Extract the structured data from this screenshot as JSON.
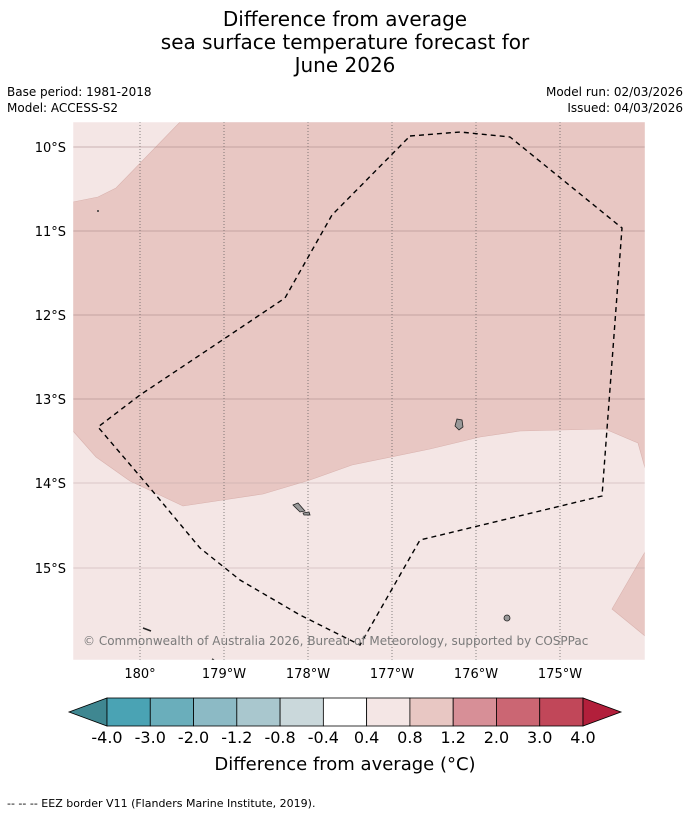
{
  "title": {
    "line1": "Difference from average",
    "line2": "sea surface temperature forecast for",
    "line3": "June 2026"
  },
  "meta": {
    "base_period": "Base period: 1981-2018",
    "model": "Model: ACCESS-S2",
    "model_run": "Model run: 02/03/2026",
    "issued": "Issued: 04/03/2026"
  },
  "map": {
    "lon_labels": [
      "180°",
      "179°W",
      "178°W",
      "177°W",
      "176°W",
      "175°W"
    ],
    "lat_labels": [
      "10°S",
      "11°S",
      "12°S",
      "13°S",
      "14°S",
      "15°S"
    ],
    "copyright": "© Commonwealth of Australia 2026, Bureau of Meteorology, supported by COSPPac",
    "colors": {
      "band_0_4_to_0_8": "#f4e6e5",
      "band_0_8_to_1_2": "#e8c7c3",
      "land": "#999999",
      "eez_line": "#000000"
    }
  },
  "colorbar": {
    "ticks": [
      "-4.0",
      "-3.0",
      "-2.0",
      "-1.2",
      "-0.8",
      "-0.4",
      "0.4",
      "0.8",
      "1.2",
      "2.0",
      "3.0",
      "4.0"
    ],
    "colors": [
      "#3f8791",
      "#4aa3b4",
      "#6aaebb",
      "#8cbac5",
      "#a9c7ce",
      "#cad8db",
      "#ffffff",
      "#f4e6e5",
      "#e8c7c3",
      "#d78f97",
      "#cb6673",
      "#c14759",
      "#b21f3b"
    ],
    "label": "Difference from average (°C)"
  },
  "footer": {
    "legend": "--  --  -- EEZ border V11 (Flanders Marine Institute, 2019)."
  }
}
